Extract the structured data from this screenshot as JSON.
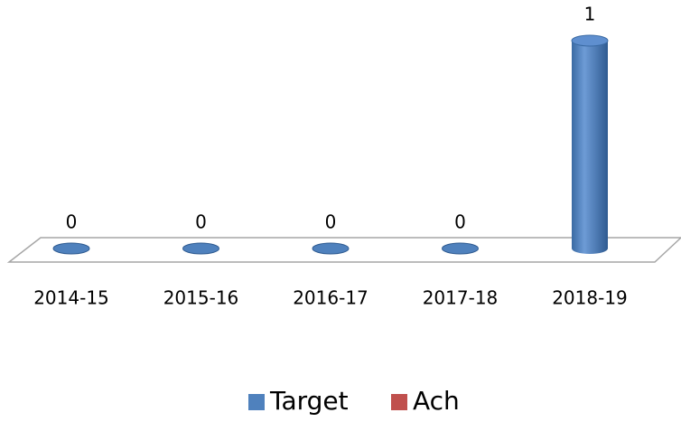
{
  "chart_data": {
    "type": "bar3d",
    "categories": [
      "2014-15",
      "2015-16",
      "2016-17",
      "2017-18",
      "2018-19"
    ],
    "series": [
      {
        "name": "Target",
        "color": "#4f81bd",
        "values": [
          0,
          0,
          0,
          0,
          1
        ]
      },
      {
        "name": "Ach",
        "color": "#c0504d",
        "values": [
          null,
          null,
          null,
          null,
          null
        ]
      }
    ],
    "legend": "bottom"
  }
}
